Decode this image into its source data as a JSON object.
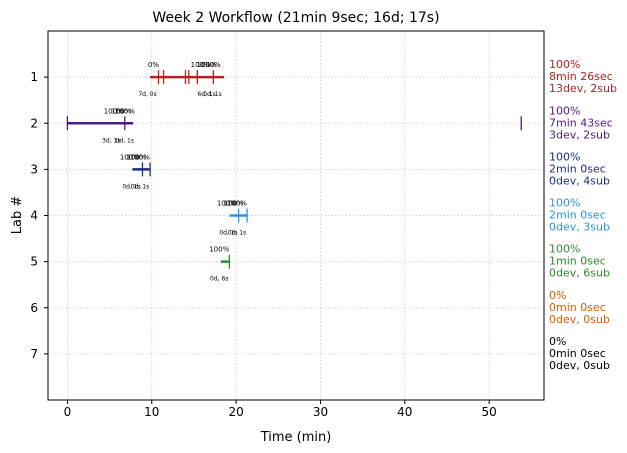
{
  "chart_data": {
    "type": "timeline",
    "title": "Week 2 Workflow (21min 9sec; 16d; 17s)",
    "xlabel": "Time (min)",
    "ylabel": "Lab #",
    "xlim": [
      -2.3,
      56.5
    ],
    "ylim": [
      8.0,
      0.0
    ],
    "xticks": [
      0,
      10,
      20,
      30,
      40,
      50
    ],
    "yticks": [
      1,
      2,
      3,
      4,
      5,
      6,
      7
    ],
    "grid": true,
    "labs": [
      {
        "lab": 1,
        "color": "#b22222",
        "segments": [
          [
            9.8,
            18.6
          ]
        ],
        "ticks": [
          10.8,
          11.4,
          14.0,
          14.4,
          15.4,
          17.3
        ],
        "pct_labels": [
          {
            "x": 10.2,
            "text": "0%"
          },
          {
            "x": 15.8,
            "text": "100%"
          },
          {
            "x": 16.5,
            "text": "100%"
          },
          {
            "x": 17.0,
            "text": "100%"
          }
        ],
        "small_labels": [
          {
            "x": 9.5,
            "text": "7d, 0s"
          },
          {
            "x": 16.5,
            "text": "6d, 1s"
          },
          {
            "x": 17.2,
            "text": "0d, 1s"
          }
        ],
        "summary": [
          "100%",
          "8min 26sec",
          "13dev, 2sub"
        ]
      },
      {
        "lab": 2,
        "color": "#4b1a8c",
        "segments": [
          [
            0.0,
            7.8
          ]
        ],
        "ticks": [
          0.0,
          6.8,
          53.8
        ],
        "pct_labels": [
          {
            "x": 5.5,
            "text": "100%"
          },
          {
            "x": 6.4,
            "text": "100%"
          },
          {
            "x": 6.8,
            "text": "100%"
          }
        ],
        "small_labels": [
          {
            "x": 5.2,
            "text": "3d, 1s"
          },
          {
            "x": 6.8,
            "text": "0d, 1s"
          }
        ],
        "summary": [
          "100%",
          "7min 43sec",
          "3dev, 2sub"
        ]
      },
      {
        "lab": 3,
        "color": "#1f2f80",
        "segments": [
          [
            7.7,
            9.8
          ]
        ],
        "ticks": [
          8.9,
          9.8
        ],
        "pct_labels": [
          {
            "x": 7.4,
            "text": "100%"
          },
          {
            "x": 8.2,
            "text": "100%"
          },
          {
            "x": 8.6,
            "text": "100%"
          }
        ],
        "small_labels": [
          {
            "x": 7.6,
            "text": "0d, 1s"
          },
          {
            "x": 8.6,
            "text": "0d, 1s"
          }
        ],
        "summary": [
          "100%",
          "2min 0sec",
          "0dev, 4sub"
        ]
      },
      {
        "lab": 4,
        "color": "#2e94e0",
        "segments": [
          [
            19.2,
            21.3
          ]
        ],
        "ticks": [
          20.3,
          21.3
        ],
        "pct_labels": [
          {
            "x": 18.9,
            "text": "100%"
          },
          {
            "x": 19.7,
            "text": "100%"
          },
          {
            "x": 20.1,
            "text": "100%"
          }
        ],
        "small_labels": [
          {
            "x": 19.1,
            "text": "0d, 1s"
          },
          {
            "x": 20.1,
            "text": "0d, 1s"
          }
        ],
        "summary": [
          "100%",
          "2min 0sec",
          "0dev, 3sub"
        ]
      },
      {
        "lab": 5,
        "color": "#2e8b2e",
        "segments": [
          [
            18.2,
            19.2
          ]
        ],
        "ticks": [
          19.2
        ],
        "pct_labels": [
          {
            "x": 18.0,
            "text": "100%"
          }
        ],
        "small_labels": [
          {
            "x": 18.0,
            "text": "0d, 6s"
          }
        ],
        "summary": [
          "100%",
          "1min 0sec",
          "0dev, 6sub"
        ]
      },
      {
        "lab": 6,
        "color": "#e05a00",
        "segments": [],
        "ticks": [],
        "pct_labels": [],
        "small_labels": [],
        "summary": [
          "0%",
          "0min 0sec",
          "0dev, 0sub"
        ]
      },
      {
        "lab": 7,
        "color": "#000000",
        "segments": [],
        "ticks": [],
        "pct_labels": [],
        "small_labels": [],
        "summary": [
          "0%",
          "0min 0sec",
          "0dev, 0sub"
        ]
      }
    ]
  }
}
